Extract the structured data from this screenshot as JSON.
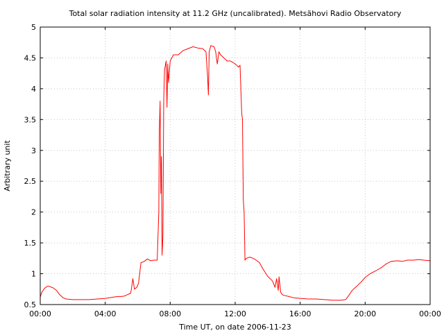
{
  "chart_data": {
    "type": "line",
    "title": "Total solar radiation intensity at 11.2 GHz (uncalibrated). Metsähovi Radio Observatory",
    "xlabel": "Time UT, on date 2006-11-23",
    "ylabel": "Arbitrary unit",
    "xlim": [
      0,
      24
    ],
    "ylim": [
      0.5,
      5
    ],
    "grid": true,
    "x_tick_labels": [
      "00:00",
      "04:00",
      "08:00",
      "12:00",
      "16:00",
      "20:00",
      "00:00"
    ],
    "x_tick_values": [
      0,
      4,
      8,
      12,
      16,
      20,
      24
    ],
    "y_tick_labels": [
      "0.5",
      "1",
      "1.5",
      "2",
      "2.5",
      "3",
      "3.5",
      "4",
      "4.5",
      "5"
    ],
    "y_tick_values": [
      0.5,
      1,
      1.5,
      2,
      2.5,
      3,
      3.5,
      4,
      4.5,
      5
    ],
    "series": [
      {
        "color": "#ff0000",
        "x": [
          0.0,
          0.1,
          0.25,
          0.4,
          0.5,
          0.6,
          0.8,
          1.0,
          1.2,
          1.4,
          1.6,
          2.0,
          2.5,
          3.0,
          3.5,
          4.0,
          4.5,
          4.8,
          5.0,
          5.2,
          5.35,
          5.45,
          5.55,
          5.6,
          5.7,
          5.8,
          5.95,
          6.05,
          6.2,
          6.4,
          6.6,
          6.8,
          7.0,
          7.2,
          7.3,
          7.33,
          7.38,
          7.42,
          7.46,
          7.5,
          7.55,
          7.6,
          7.65,
          7.75,
          7.8,
          7.85,
          7.9,
          8.0,
          8.2,
          8.5,
          8.8,
          9.1,
          9.4,
          9.7,
          10.0,
          10.2,
          10.3,
          10.35,
          10.4,
          10.5,
          10.7,
          10.8,
          10.9,
          11.0,
          11.1,
          11.3,
          11.5,
          11.7,
          11.9,
          12.1,
          12.2,
          12.3,
          12.4,
          12.45,
          12.5,
          12.55,
          12.6,
          12.65,
          12.7,
          12.9,
          13.1,
          13.3,
          13.5,
          13.7,
          14.0,
          14.3,
          14.45,
          14.55,
          14.65,
          14.7,
          14.8,
          14.9,
          15.0,
          15.3,
          15.6,
          16.0,
          16.5,
          17.0,
          17.5,
          18.0,
          18.5,
          18.8,
          19.0,
          19.2,
          19.5,
          19.8,
          20.0,
          20.3,
          20.6,
          21.0,
          21.3,
          21.6,
          22.0,
          22.3,
          22.6,
          23.0,
          23.3,
          23.6,
          24.0
        ],
        "y": [
          0.62,
          0.7,
          0.76,
          0.79,
          0.8,
          0.79,
          0.77,
          0.73,
          0.66,
          0.61,
          0.59,
          0.58,
          0.58,
          0.58,
          0.59,
          0.6,
          0.62,
          0.63,
          0.63,
          0.64,
          0.66,
          0.67,
          0.68,
          0.73,
          0.92,
          0.75,
          0.78,
          0.85,
          1.18,
          1.2,
          1.24,
          1.21,
          1.22,
          1.22,
          2.0,
          3.3,
          3.8,
          2.3,
          2.9,
          1.3,
          1.6,
          3.8,
          4.3,
          4.45,
          3.7,
          4.4,
          4.1,
          4.45,
          4.55,
          4.55,
          4.62,
          4.65,
          4.68,
          4.66,
          4.65,
          4.6,
          4.2,
          3.9,
          4.6,
          4.7,
          4.68,
          4.6,
          4.4,
          4.6,
          4.55,
          4.5,
          4.45,
          4.45,
          4.42,
          4.38,
          4.35,
          4.38,
          3.6,
          3.5,
          2.2,
          2.0,
          1.22,
          1.24,
          1.25,
          1.27,
          1.25,
          1.22,
          1.18,
          1.08,
          0.96,
          0.88,
          0.78,
          0.92,
          0.73,
          0.95,
          0.7,
          0.66,
          0.65,
          0.63,
          0.61,
          0.6,
          0.59,
          0.59,
          0.58,
          0.57,
          0.57,
          0.58,
          0.65,
          0.73,
          0.8,
          0.88,
          0.94,
          1.0,
          1.04,
          1.1,
          1.16,
          1.2,
          1.21,
          1.2,
          1.22,
          1.22,
          1.23,
          1.22,
          1.21
        ]
      }
    ]
  }
}
